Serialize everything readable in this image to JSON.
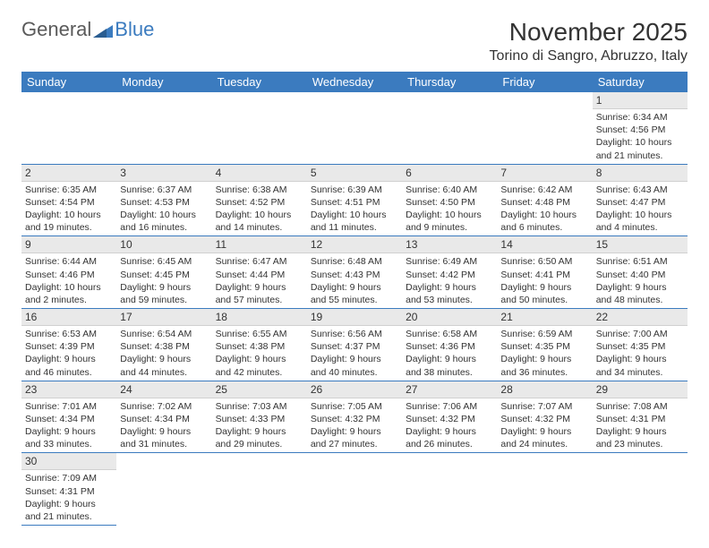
{
  "logo": {
    "part1": "General",
    "part2": "Blue"
  },
  "header": {
    "month_title": "November 2025",
    "location": "Torino di Sangro, Abruzzo, Italy"
  },
  "colors": {
    "header_bg": "#3b7bbf",
    "header_text": "#ffffff",
    "daynum_bg": "#e9e9e9",
    "row_border": "#3b7bbf",
    "logo_gray": "#5a5a5a",
    "logo_blue": "#3b7bbf"
  },
  "weekdays": [
    "Sunday",
    "Monday",
    "Tuesday",
    "Wednesday",
    "Thursday",
    "Friday",
    "Saturday"
  ],
  "days": {
    "1": {
      "sunrise": "6:34 AM",
      "sunset": "4:56 PM",
      "daylight": "10 hours and 21 minutes."
    },
    "2": {
      "sunrise": "6:35 AM",
      "sunset": "4:54 PM",
      "daylight": "10 hours and 19 minutes."
    },
    "3": {
      "sunrise": "6:37 AM",
      "sunset": "4:53 PM",
      "daylight": "10 hours and 16 minutes."
    },
    "4": {
      "sunrise": "6:38 AM",
      "sunset": "4:52 PM",
      "daylight": "10 hours and 14 minutes."
    },
    "5": {
      "sunrise": "6:39 AM",
      "sunset": "4:51 PM",
      "daylight": "10 hours and 11 minutes."
    },
    "6": {
      "sunrise": "6:40 AM",
      "sunset": "4:50 PM",
      "daylight": "10 hours and 9 minutes."
    },
    "7": {
      "sunrise": "6:42 AM",
      "sunset": "4:48 PM",
      "daylight": "10 hours and 6 minutes."
    },
    "8": {
      "sunrise": "6:43 AM",
      "sunset": "4:47 PM",
      "daylight": "10 hours and 4 minutes."
    },
    "9": {
      "sunrise": "6:44 AM",
      "sunset": "4:46 PM",
      "daylight": "10 hours and 2 minutes."
    },
    "10": {
      "sunrise": "6:45 AM",
      "sunset": "4:45 PM",
      "daylight": "9 hours and 59 minutes."
    },
    "11": {
      "sunrise": "6:47 AM",
      "sunset": "4:44 PM",
      "daylight": "9 hours and 57 minutes."
    },
    "12": {
      "sunrise": "6:48 AM",
      "sunset": "4:43 PM",
      "daylight": "9 hours and 55 minutes."
    },
    "13": {
      "sunrise": "6:49 AM",
      "sunset": "4:42 PM",
      "daylight": "9 hours and 53 minutes."
    },
    "14": {
      "sunrise": "6:50 AM",
      "sunset": "4:41 PM",
      "daylight": "9 hours and 50 minutes."
    },
    "15": {
      "sunrise": "6:51 AM",
      "sunset": "4:40 PM",
      "daylight": "9 hours and 48 minutes."
    },
    "16": {
      "sunrise": "6:53 AM",
      "sunset": "4:39 PM",
      "daylight": "9 hours and 46 minutes."
    },
    "17": {
      "sunrise": "6:54 AM",
      "sunset": "4:38 PM",
      "daylight": "9 hours and 44 minutes."
    },
    "18": {
      "sunrise": "6:55 AM",
      "sunset": "4:38 PM",
      "daylight": "9 hours and 42 minutes."
    },
    "19": {
      "sunrise": "6:56 AM",
      "sunset": "4:37 PM",
      "daylight": "9 hours and 40 minutes."
    },
    "20": {
      "sunrise": "6:58 AM",
      "sunset": "4:36 PM",
      "daylight": "9 hours and 38 minutes."
    },
    "21": {
      "sunrise": "6:59 AM",
      "sunset": "4:35 PM",
      "daylight": "9 hours and 36 minutes."
    },
    "22": {
      "sunrise": "7:00 AM",
      "sunset": "4:35 PM",
      "daylight": "9 hours and 34 minutes."
    },
    "23": {
      "sunrise": "7:01 AM",
      "sunset": "4:34 PM",
      "daylight": "9 hours and 33 minutes."
    },
    "24": {
      "sunrise": "7:02 AM",
      "sunset": "4:34 PM",
      "daylight": "9 hours and 31 minutes."
    },
    "25": {
      "sunrise": "7:03 AM",
      "sunset": "4:33 PM",
      "daylight": "9 hours and 29 minutes."
    },
    "26": {
      "sunrise": "7:05 AM",
      "sunset": "4:32 PM",
      "daylight": "9 hours and 27 minutes."
    },
    "27": {
      "sunrise": "7:06 AM",
      "sunset": "4:32 PM",
      "daylight": "9 hours and 26 minutes."
    },
    "28": {
      "sunrise": "7:07 AM",
      "sunset": "4:32 PM",
      "daylight": "9 hours and 24 minutes."
    },
    "29": {
      "sunrise": "7:08 AM",
      "sunset": "4:31 PM",
      "daylight": "9 hours and 23 minutes."
    },
    "30": {
      "sunrise": "7:09 AM",
      "sunset": "4:31 PM",
      "daylight": "9 hours and 21 minutes."
    }
  },
  "labels": {
    "sunrise_prefix": "Sunrise: ",
    "sunset_prefix": "Sunset: ",
    "daylight_prefix": "Daylight: "
  },
  "layout": {
    "first_weekday_index": 6,
    "num_days": 30
  }
}
